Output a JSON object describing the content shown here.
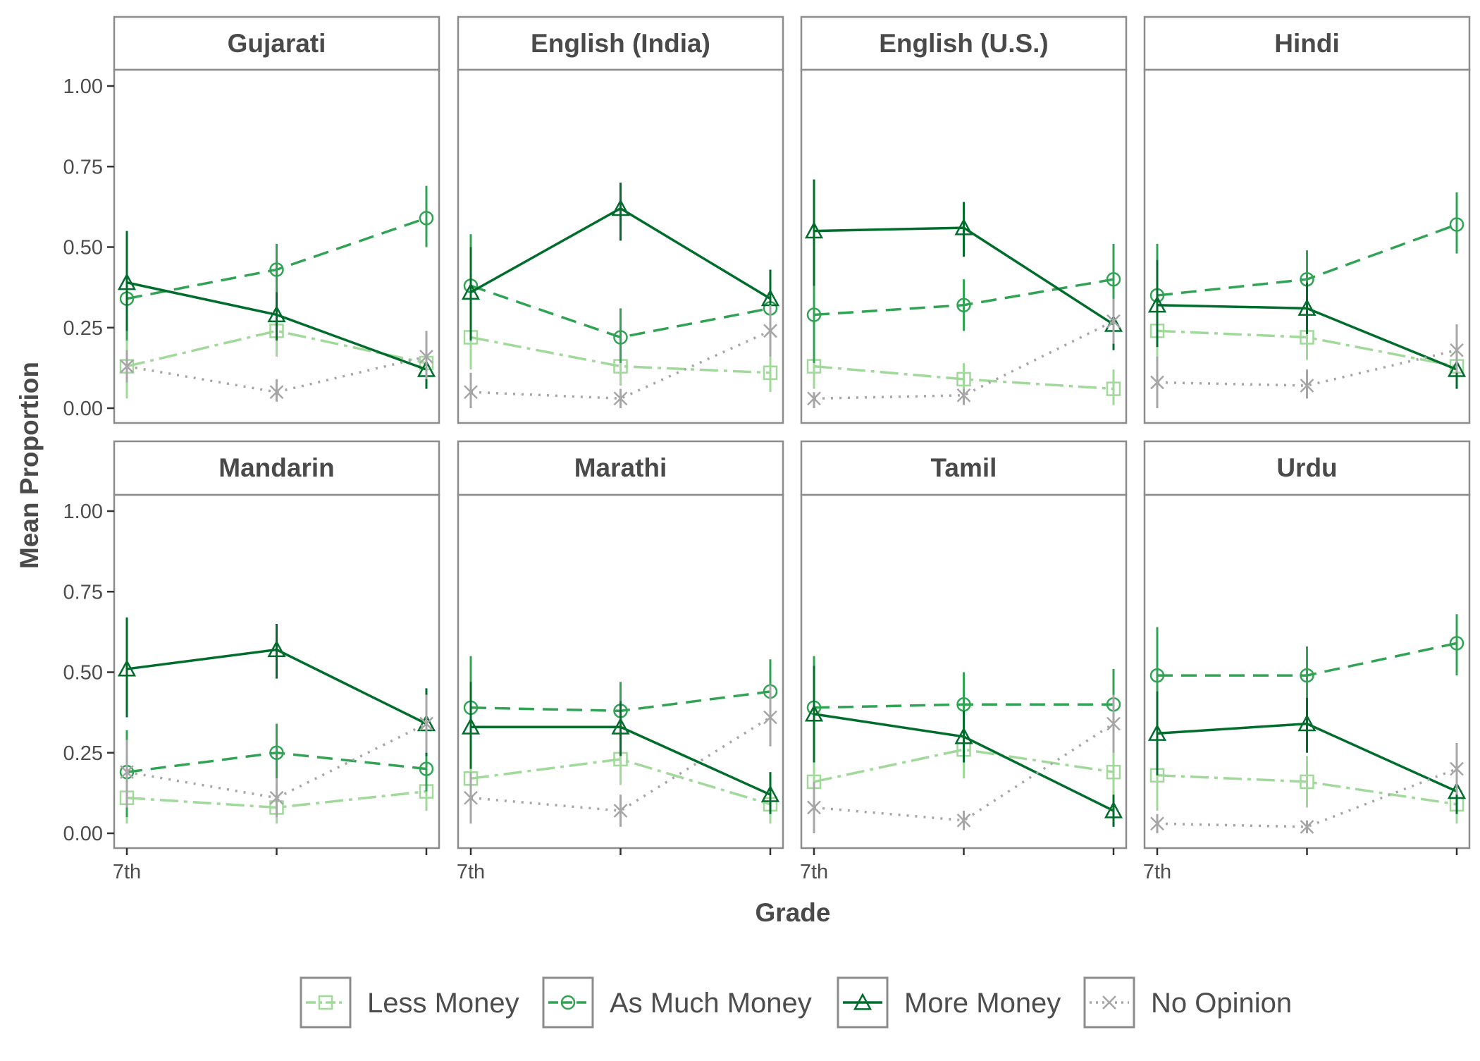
{
  "chart_data": {
    "type": "line",
    "xlabel": "Grade",
    "ylabel": "Mean Proportion",
    "ylim": [
      0,
      1.05
    ],
    "y_ticks": [
      "0.00",
      "0.25",
      "0.50",
      "0.75",
      "1.00"
    ],
    "x_categories": [
      "7th",
      "",
      ""
    ],
    "x_tick_label": "7th",
    "grid": false,
    "legend_position": "bottom",
    "colors": {
      "Less Money": "#a1d99b",
      "As Much Money": "#31a354",
      "More Money": "#006d2c",
      "No Opinion": "#a6a6a6"
    },
    "series_names": [
      "Less Money",
      "As Much Money",
      "More Money",
      "No Opinion"
    ],
    "panels": [
      {
        "title": "Gujarati",
        "series": [
          {
            "name": "Less Money",
            "values": [
              0.13,
              0.24,
              0.14
            ],
            "lower": [
              0.03,
              0.16,
              0.08
            ],
            "upper": [
              0.23,
              0.32,
              0.2
            ]
          },
          {
            "name": "As Much Money",
            "values": [
              0.34,
              0.43,
              0.59
            ],
            "lower": [
              0.21,
              0.33,
              0.5
            ],
            "upper": [
              0.5,
              0.51,
              0.69
            ]
          },
          {
            "name": "More Money",
            "values": [
              0.39,
              0.29,
              0.12
            ],
            "lower": [
              0.24,
              0.21,
              0.06
            ],
            "upper": [
              0.55,
              0.36,
              0.18
            ]
          },
          {
            "name": "No Opinion",
            "values": [
              0.13,
              0.05,
              0.16
            ],
            "lower": [
              0.08,
              0.02,
              0.09
            ],
            "upper": [
              0.18,
              0.09,
              0.24
            ]
          }
        ]
      },
      {
        "title": "English (India)",
        "series": [
          {
            "name": "Less Money",
            "values": [
              0.22,
              0.13,
              0.11
            ],
            "lower": [
              0.12,
              0.07,
              0.05
            ],
            "upper": [
              0.33,
              0.19,
              0.16
            ]
          },
          {
            "name": "As Much Money",
            "values": [
              0.38,
              0.22,
              0.31
            ],
            "lower": [
              0.21,
              0.14,
              0.22
            ],
            "upper": [
              0.54,
              0.31,
              0.4
            ]
          },
          {
            "name": "More Money",
            "values": [
              0.36,
              0.62,
              0.34
            ],
            "lower": [
              0.21,
              0.52,
              0.25
            ],
            "upper": [
              0.5,
              0.7,
              0.43
            ]
          },
          {
            "name": "No Opinion",
            "values": [
              0.05,
              0.03,
              0.24
            ],
            "lower": [
              0.0,
              0.0,
              0.16
            ],
            "upper": [
              0.11,
              0.06,
              0.32
            ]
          }
        ]
      },
      {
        "title": "English (U.S.)",
        "series": [
          {
            "name": "Less Money",
            "values": [
              0.13,
              0.09,
              0.06
            ],
            "lower": [
              0.06,
              0.04,
              0.01
            ],
            "upper": [
              0.2,
              0.14,
              0.12
            ]
          },
          {
            "name": "As Much Money",
            "values": [
              0.29,
              0.32,
              0.4
            ],
            "lower": [
              0.14,
              0.24,
              0.3
            ],
            "upper": [
              0.44,
              0.4,
              0.51
            ]
          },
          {
            "name": "More Money",
            "values": [
              0.55,
              0.56,
              0.26
            ],
            "lower": [
              0.38,
              0.47,
              0.18
            ],
            "upper": [
              0.71,
              0.64,
              0.34
            ]
          },
          {
            "name": "No Opinion",
            "values": [
              0.03,
              0.04,
              0.27
            ],
            "lower": [
              0.0,
              0.01,
              0.2
            ],
            "upper": [
              0.05,
              0.06,
              0.34
            ]
          }
        ]
      },
      {
        "title": "Hindi",
        "series": [
          {
            "name": "Less Money",
            "values": [
              0.24,
              0.22,
              0.13
            ],
            "lower": [
              0.13,
              0.15,
              0.07
            ],
            "upper": [
              0.36,
              0.29,
              0.19
            ]
          },
          {
            "name": "As Much Money",
            "values": [
              0.35,
              0.4,
              0.57
            ],
            "lower": [
              0.21,
              0.31,
              0.48
            ],
            "upper": [
              0.51,
              0.49,
              0.67
            ]
          },
          {
            "name": "More Money",
            "values": [
              0.32,
              0.31,
              0.12
            ],
            "lower": [
              0.19,
              0.23,
              0.06
            ],
            "upper": [
              0.46,
              0.39,
              0.18
            ]
          },
          {
            "name": "No Opinion",
            "values": [
              0.08,
              0.07,
              0.18
            ],
            "lower": [
              0.0,
              0.03,
              0.11
            ],
            "upper": [
              0.16,
              0.12,
              0.26
            ]
          }
        ]
      },
      {
        "title": "Mandarin",
        "series": [
          {
            "name": "Less Money",
            "values": [
              0.11,
              0.08,
              0.13
            ],
            "lower": [
              0.03,
              0.03,
              0.07
            ],
            "upper": [
              0.18,
              0.13,
              0.19
            ]
          },
          {
            "name": "As Much Money",
            "values": [
              0.19,
              0.25,
              0.2
            ],
            "lower": [
              0.05,
              0.17,
              0.13
            ],
            "upper": [
              0.32,
              0.34,
              0.28
            ]
          },
          {
            "name": "More Money",
            "values": [
              0.51,
              0.57,
              0.34
            ],
            "lower": [
              0.36,
              0.48,
              0.24
            ],
            "upper": [
              0.67,
              0.65,
              0.45
            ]
          },
          {
            "name": "No Opinion",
            "values": [
              0.19,
              0.11,
              0.34
            ],
            "lower": [
              0.08,
              0.05,
              0.25
            ],
            "upper": [
              0.29,
              0.17,
              0.43
            ]
          }
        ]
      },
      {
        "title": "Marathi",
        "series": [
          {
            "name": "Less Money",
            "values": [
              0.17,
              0.23,
              0.09
            ],
            "lower": [
              0.06,
              0.15,
              0.03
            ],
            "upper": [
              0.28,
              0.3,
              0.15
            ]
          },
          {
            "name": "As Much Money",
            "values": [
              0.39,
              0.38,
              0.44
            ],
            "lower": [
              0.22,
              0.29,
              0.34
            ],
            "upper": [
              0.55,
              0.47,
              0.54
            ]
          },
          {
            "name": "More Money",
            "values": [
              0.33,
              0.33,
              0.12
            ],
            "lower": [
              0.2,
              0.24,
              0.06
            ],
            "upper": [
              0.47,
              0.41,
              0.19
            ]
          },
          {
            "name": "No Opinion",
            "values": [
              0.11,
              0.07,
              0.36
            ],
            "lower": [
              0.03,
              0.02,
              0.27
            ],
            "upper": [
              0.19,
              0.12,
              0.46
            ]
          }
        ]
      },
      {
        "title": "Tamil",
        "series": [
          {
            "name": "Less Money",
            "values": [
              0.16,
              0.26,
              0.19
            ],
            "lower": [
              0.05,
              0.17,
              0.11
            ],
            "upper": [
              0.27,
              0.34,
              0.28
            ]
          },
          {
            "name": "As Much Money",
            "values": [
              0.39,
              0.4,
              0.4
            ],
            "lower": [
              0.23,
              0.31,
              0.3
            ],
            "upper": [
              0.55,
              0.5,
              0.51
            ]
          },
          {
            "name": "More Money",
            "values": [
              0.37,
              0.3,
              0.07
            ],
            "lower": [
              0.22,
              0.22,
              0.02
            ],
            "upper": [
              0.52,
              0.38,
              0.12
            ]
          },
          {
            "name": "No Opinion",
            "values": [
              0.08,
              0.04,
              0.34
            ],
            "lower": [
              0.0,
              0.01,
              0.25
            ],
            "upper": [
              0.16,
              0.07,
              0.43
            ]
          }
        ]
      },
      {
        "title": "Urdu",
        "series": [
          {
            "name": "Less Money",
            "values": [
              0.18,
              0.16,
              0.09
            ],
            "lower": [
              0.07,
              0.08,
              0.03
            ],
            "upper": [
              0.28,
              0.24,
              0.15
            ]
          },
          {
            "name": "As Much Money",
            "values": [
              0.49,
              0.49,
              0.59
            ],
            "lower": [
              0.33,
              0.39,
              0.49
            ],
            "upper": [
              0.64,
              0.58,
              0.68
            ]
          },
          {
            "name": "More Money",
            "values": [
              0.31,
              0.34,
              0.13
            ],
            "lower": [
              0.18,
              0.25,
              0.06
            ],
            "upper": [
              0.44,
              0.42,
              0.2
            ]
          },
          {
            "name": "No Opinion",
            "values": [
              0.03,
              0.02,
              0.2
            ],
            "lower": [
              0.0,
              0.0,
              0.12
            ],
            "upper": [
              0.06,
              0.04,
              0.28
            ]
          }
        ]
      }
    ]
  }
}
